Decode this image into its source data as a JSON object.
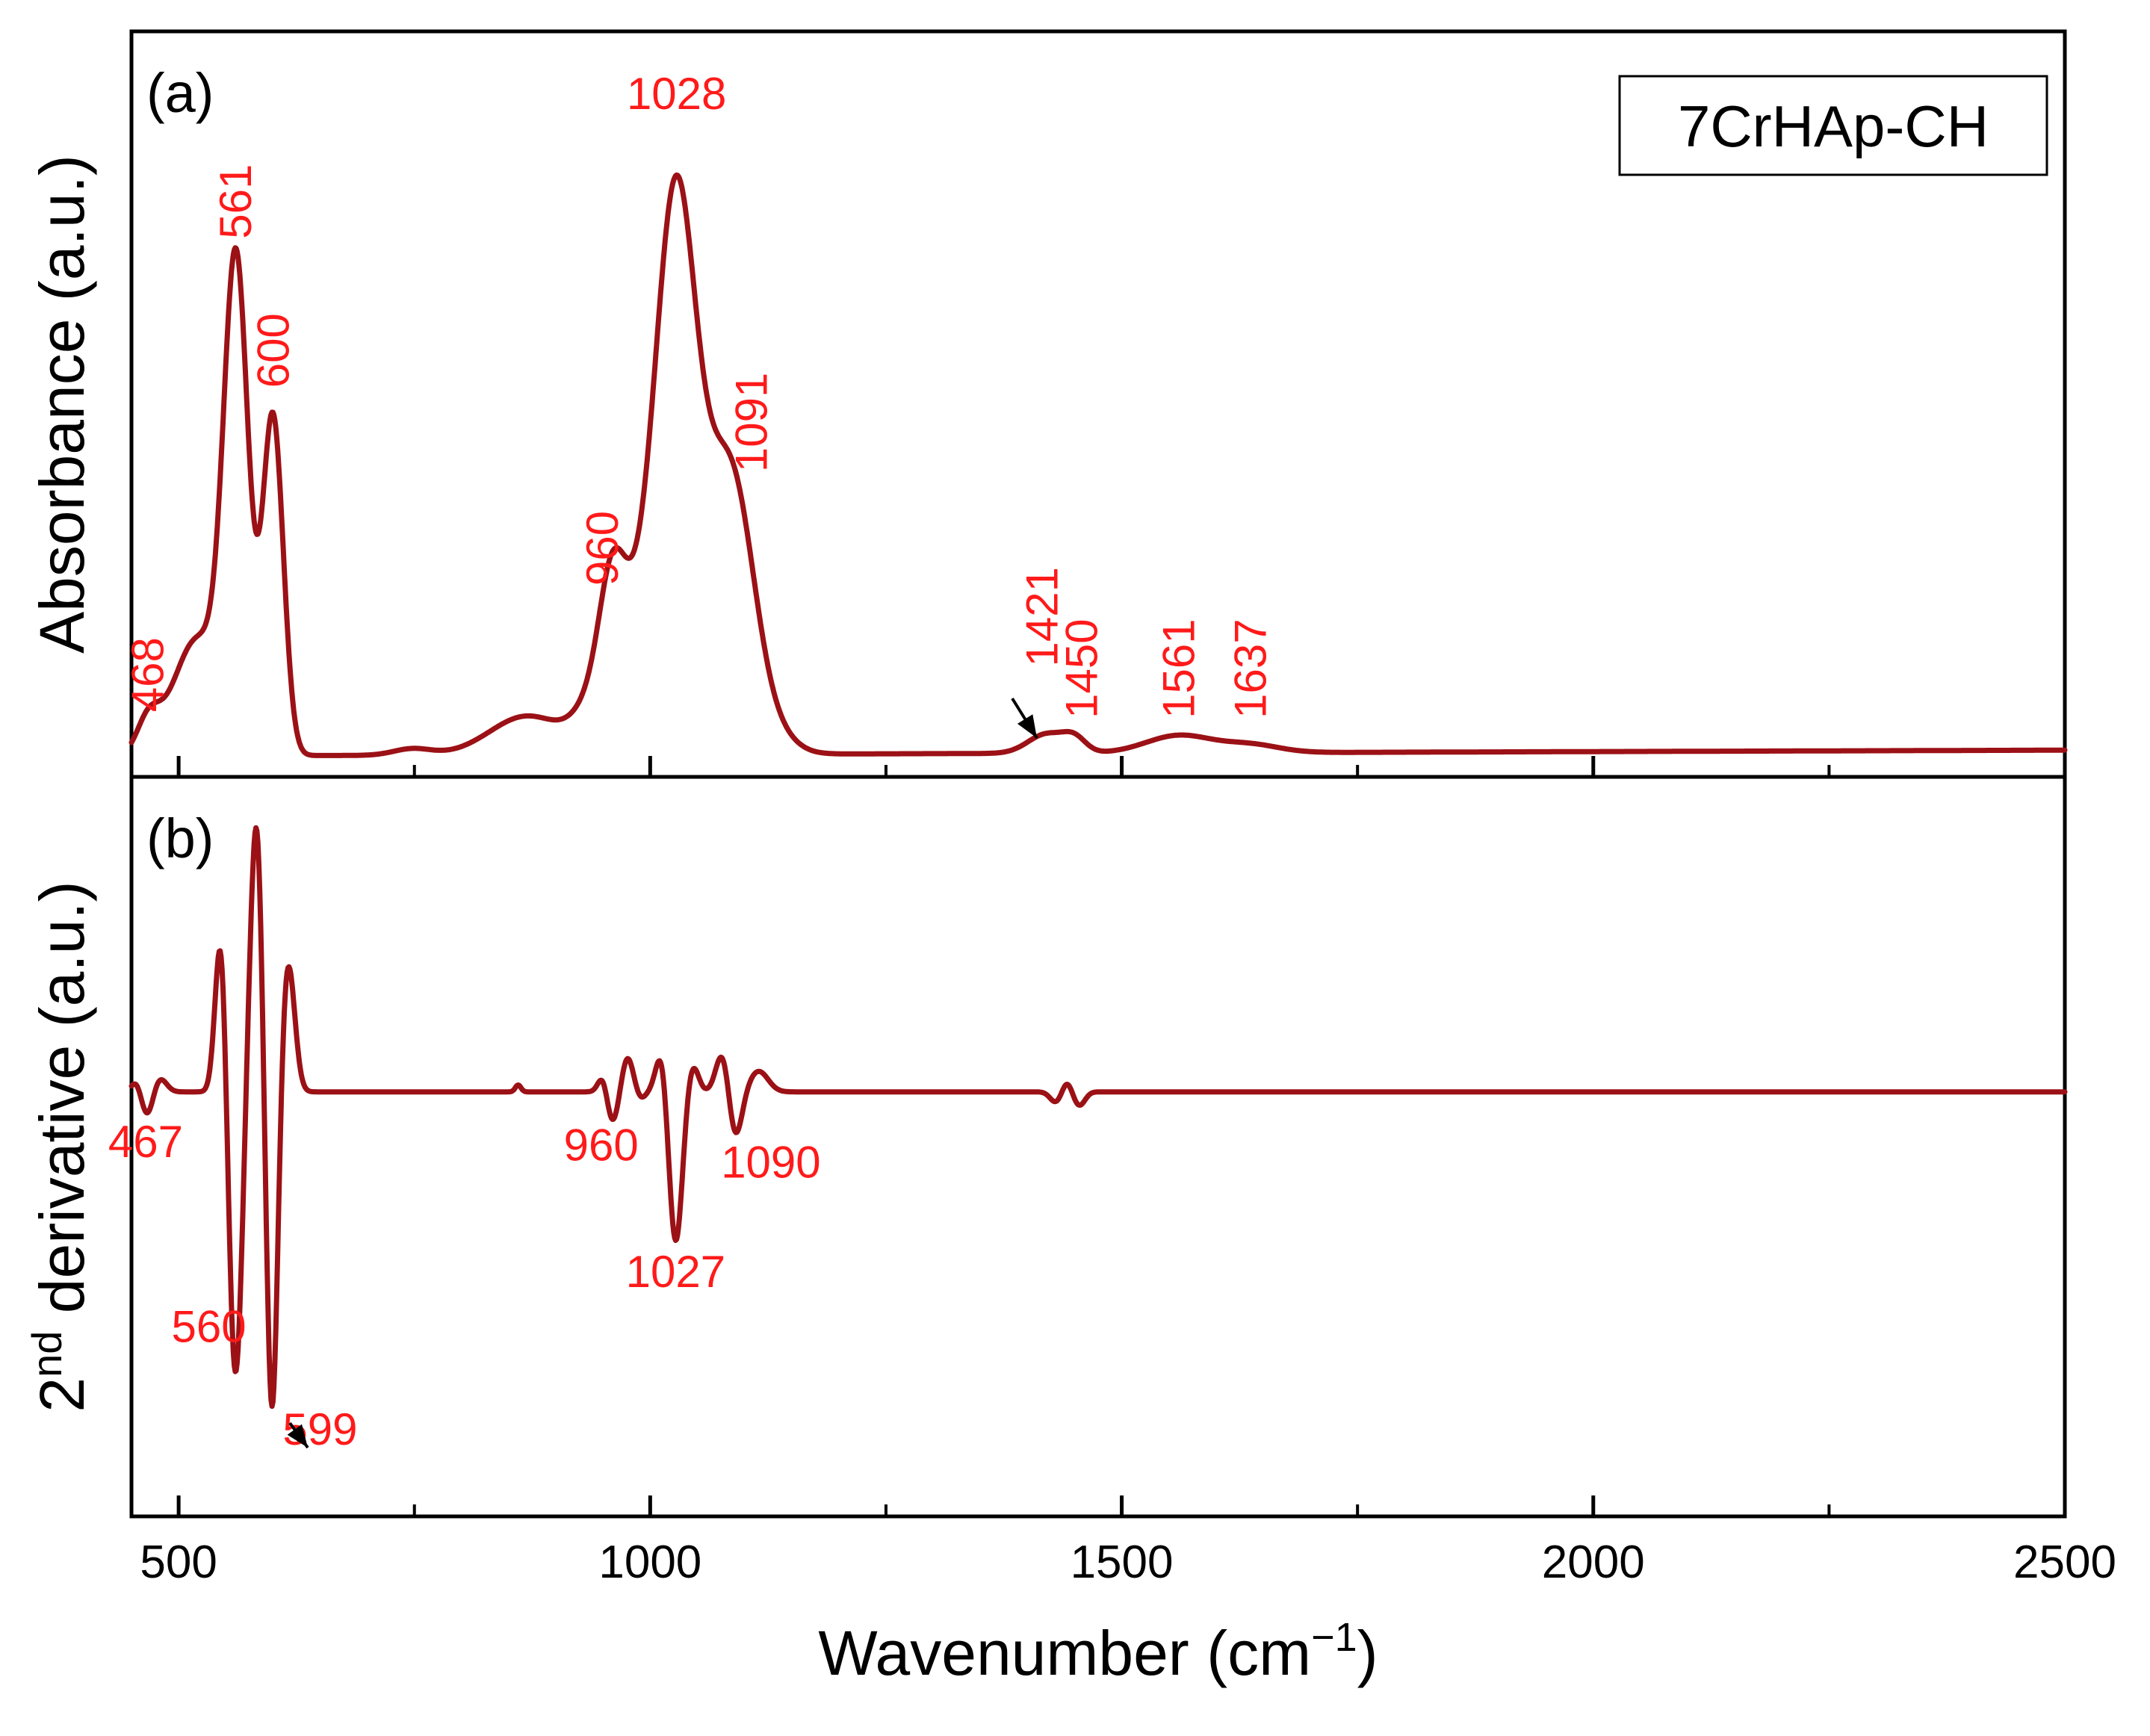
{
  "chart_data": {
    "type": "line",
    "colors": {
      "series": "#9b1116",
      "labels": "#ff1a1a",
      "axes": "#000000"
    },
    "x_axis": {
      "label": "Wavenumber (cm",
      "label_sup": "−1",
      "label_close": ")",
      "range": [
        450,
        2500
      ],
      "ticks": [
        500,
        1000,
        1500,
        2000,
        2500
      ],
      "tick_labels": [
        "500",
        "1000",
        "1500",
        "2000",
        "2500"
      ],
      "minor_ticks": [
        750,
        1250,
        1750,
        2250
      ]
    },
    "panels": [
      {
        "id": "a",
        "label": "(a)",
        "ylabel": "Absorbance (a.u.)",
        "legend": "7CrHAp-CH",
        "ylim": [
          -0.03,
          1.12
        ],
        "series": {
          "name": "Absorbance",
          "baseline": 0.002,
          "peaks": [
            {
              "x": 468,
              "h": 0.05,
              "w": 12
            },
            {
              "x": 520,
              "h": 0.18,
              "w": 26
            },
            {
              "x": 561,
              "h": 0.73,
              "w": 13
            },
            {
              "x": 600,
              "h": 0.52,
              "w": 11
            },
            {
              "x": 748,
              "h": 0.01,
              "w": 20
            },
            {
              "x": 870,
              "h": 0.06,
              "w": 40
            },
            {
              "x": 940,
              "h": 0.06,
              "w": 20
            },
            {
              "x": 960,
              "h": 0.18,
              "w": 14
            },
            {
              "x": 1000,
              "h": 0.25,
              "w": 28
            },
            {
              "x": 1028,
              "h": 0.66,
              "w": 20
            },
            {
              "x": 1060,
              "h": 0.22,
              "w": 22
            },
            {
              "x": 1091,
              "h": 0.34,
              "w": 22
            },
            {
              "x": 1130,
              "h": 0.03,
              "w": 22
            },
            {
              "x": 1421,
              "h": 0.03,
              "w": 20
            },
            {
              "x": 1450,
              "h": 0.02,
              "w": 12
            },
            {
              "x": 1561,
              "h": 0.027,
              "w": 35
            },
            {
              "x": 1637,
              "h": 0.012,
              "w": 30
            }
          ],
          "slope": 4.5e-06
        },
        "annotations": [
          {
            "text": "468",
            "x": 468,
            "y": 0.07,
            "rotate": true
          },
          {
            "text": "561",
            "x": 561,
            "y": 0.8,
            "rotate": true
          },
          {
            "text": "600",
            "x": 601,
            "y": 0.57,
            "rotate": true
          },
          {
            "text": "960",
            "x": 950,
            "y": 0.265,
            "rotate": true
          },
          {
            "text": "1028",
            "x": 1028,
            "y": 1.0,
            "rotate": false
          },
          {
            "text": "1091",
            "x": 1108,
            "y": 0.44,
            "rotate": true
          },
          {
            "text": "1421",
            "x": 1416,
            "y": 0.14,
            "rotate": true,
            "arrow": true
          },
          {
            "text": "1450",
            "x": 1458,
            "y": 0.06,
            "rotate": true
          },
          {
            "text": "1561",
            "x": 1561,
            "y": 0.06,
            "rotate": true
          },
          {
            "text": "1637",
            "x": 1637,
            "y": 0.06,
            "rotate": true
          }
        ]
      },
      {
        "id": "b",
        "label": "(b)",
        "ylabel": "derivative (a.u.)",
        "ylabel_prefix": "2",
        "ylabel_sup": "nd",
        "ylim": [
          -0.62,
          0.46
        ],
        "series": {
          "name": "2nd derivative",
          "baseline": 0.0,
          "peaks": [
            {
              "x": 455,
              "h": 0.015,
              "w": 5
            },
            {
              "x": 467,
              "h": -0.035,
              "w": 6
            },
            {
              "x": 480,
              "h": 0.02,
              "w": 7
            },
            {
              "x": 545,
              "h": 0.24,
              "w": 6
            },
            {
              "x": 560,
              "h": -0.42,
              "w": 7
            },
            {
              "x": 575,
              "h": 0.06,
              "w": 5
            },
            {
              "x": 583,
              "h": 0.38,
              "w": 6
            },
            {
              "x": 599,
              "h": -0.48,
              "w": 6
            },
            {
              "x": 616,
              "h": 0.19,
              "w": 7
            },
            {
              "x": 860,
              "h": 0.01,
              "w": 3
            },
            {
              "x": 950,
              "h": 0.025,
              "w": 5
            },
            {
              "x": 960,
              "h": -0.045,
              "w": 6
            },
            {
              "x": 976,
              "h": 0.05,
              "w": 6
            },
            {
              "x": 990,
              "h": -0.01,
              "w": 5
            },
            {
              "x": 1012,
              "h": 0.06,
              "w": 6
            },
            {
              "x": 1027,
              "h": -0.22,
              "w": 7
            },
            {
              "x": 1045,
              "h": 0.04,
              "w": 6
            },
            {
              "x": 1077,
              "h": 0.06,
              "w": 7
            },
            {
              "x": 1090,
              "h": -0.07,
              "w": 7
            },
            {
              "x": 1115,
              "h": 0.03,
              "w": 10
            },
            {
              "x": 1430,
              "h": -0.015,
              "w": 6
            },
            {
              "x": 1442,
              "h": 0.015,
              "w": 5
            },
            {
              "x": 1455,
              "h": -0.02,
              "w": 6
            }
          ],
          "slope": 0.0
        },
        "annotations": [
          {
            "text": "467",
            "x": 465,
            "y": -0.095,
            "rotate": false
          },
          {
            "text": "960",
            "x": 948,
            "y": -0.1,
            "rotate": false
          },
          {
            "text": "1090",
            "x": 1128,
            "y": -0.125,
            "rotate": false
          },
          {
            "text": "1027",
            "x": 1027,
            "y": -0.285,
            "rotate": false
          },
          {
            "text": "560",
            "x": 532,
            "y": -0.365,
            "rotate": false
          },
          {
            "text": "599",
            "x": 650,
            "y": -0.515,
            "rotate": false,
            "arrow": true
          }
        ]
      }
    ]
  }
}
